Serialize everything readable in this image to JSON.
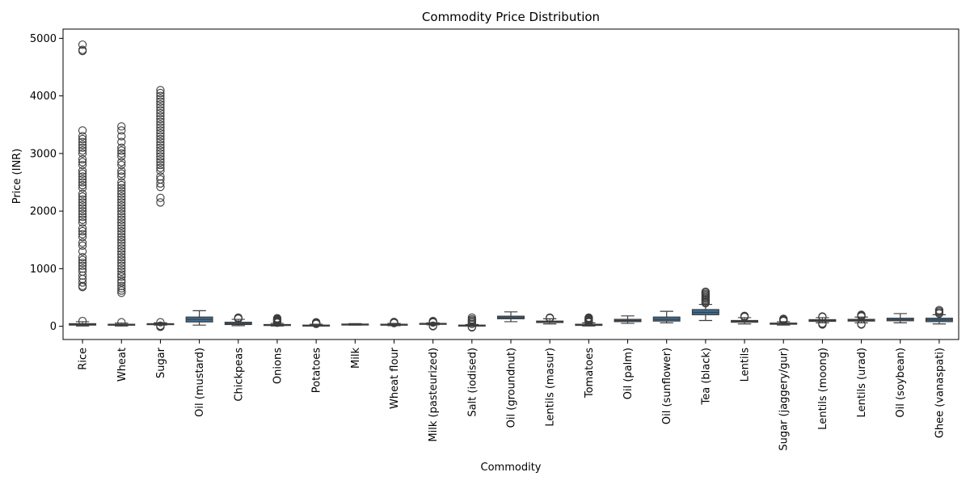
{
  "chart_data": {
    "type": "box",
    "title": "Commodity Price Distribution",
    "xlabel": "Commodity",
    "ylabel": "Price (INR)",
    "ylim": [
      -230,
      5160
    ],
    "yticks": [
      0,
      1000,
      2000,
      3000,
      4000,
      5000
    ],
    "box_color": "#3a6f9a",
    "line_color": "#3d3d3d",
    "grid": false,
    "series": [
      {
        "category": "Rice",
        "whisker_low": 5,
        "q1": 20,
        "median": 30,
        "q3": 45,
        "whisker_high": 80,
        "outliers": [
          90,
          700,
          680,
          760,
          820,
          880,
          950,
          1000,
          1050,
          1100,
          1150,
          1200,
          1300,
          1400,
          1450,
          1550,
          1600,
          1650,
          1700,
          1800,
          1850,
          1900,
          1950,
          2000,
          2050,
          2100,
          2150,
          2200,
          2250,
          2300,
          2400,
          2450,
          2500,
          2550,
          2600,
          2650,
          2700,
          2800,
          2850,
          2900,
          3000,
          3050,
          3100,
          3150,
          3200,
          3250,
          3300,
          3400,
          4780,
          4800,
          4890
        ]
      },
      {
        "category": "Wheat",
        "whisker_low": 5,
        "q1": 18,
        "median": 25,
        "q3": 35,
        "whisker_high": 55,
        "outliers": [
          70,
          580,
          620,
          660,
          700,
          760,
          800,
          860,
          900,
          950,
          1000,
          1050,
          1100,
          1150,
          1200,
          1250,
          1300,
          1350,
          1400,
          1450,
          1500,
          1550,
          1600,
          1650,
          1700,
          1750,
          1800,
          1850,
          1900,
          1950,
          2000,
          2050,
          2100,
          2150,
          2200,
          2250,
          2300,
          2350,
          2400,
          2450,
          2500,
          2600,
          2650,
          2700,
          2800,
          2850,
          2950,
          3000,
          3050,
          3100,
          3200,
          3300,
          3400,
          3470
        ]
      },
      {
        "category": "Sugar",
        "whisker_low": 20,
        "q1": 30,
        "median": 38,
        "q3": 45,
        "whisker_high": 60,
        "outliers": [
          -10,
          0,
          10,
          70,
          2150,
          2230,
          2420,
          2480,
          2550,
          2600,
          2700,
          2750,
          2800,
          2850,
          2900,
          2950,
          3000,
          3050,
          3100,
          3150,
          3200,
          3250,
          3300,
          3350,
          3400,
          3450,
          3500,
          3550,
          3600,
          3650,
          3700,
          3750,
          3800,
          3850,
          3900,
          3950,
          4000,
          4050,
          4100
        ]
      },
      {
        "category": "Oil (mustard)",
        "whisker_low": 20,
        "q1": 75,
        "median": 120,
        "q3": 160,
        "whisker_high": 270,
        "outliers": []
      },
      {
        "category": "Chickpeas",
        "whisker_low": 10,
        "q1": 30,
        "median": 45,
        "q3": 70,
        "whisker_high": 120,
        "outliers": [
          130,
          140,
          150
        ]
      },
      {
        "category": "Onions",
        "whisker_low": 5,
        "q1": 15,
        "median": 22,
        "q3": 30,
        "whisker_high": 50,
        "outliers": [
          60,
          70,
          80,
          90,
          100,
          110,
          120,
          130,
          140
        ]
      },
      {
        "category": "Potatoes",
        "whisker_low": 3,
        "q1": 10,
        "median": 15,
        "q3": 20,
        "whisker_high": 35,
        "outliers": [
          40,
          45,
          50,
          55,
          60,
          65,
          70
        ]
      },
      {
        "category": "Milk",
        "whisker_low": 20,
        "q1": 28,
        "median": 32,
        "q3": 38,
        "whisker_high": 45,
        "outliers": []
      },
      {
        "category": "Wheat flour",
        "whisker_low": 10,
        "q1": 20,
        "median": 28,
        "q3": 35,
        "whisker_high": 50,
        "outliers": [
          55,
          60,
          65,
          70,
          75
        ]
      },
      {
        "category": "Milk (pasteurized)",
        "whisker_low": 25,
        "q1": 35,
        "median": 42,
        "q3": 50,
        "whisker_high": 60,
        "outliers": [
          0,
          10,
          65,
          70,
          75,
          80,
          90
        ]
      },
      {
        "category": "Salt (iodised)",
        "whisker_low": 5,
        "q1": 10,
        "median": 15,
        "q3": 20,
        "whisker_high": 30,
        "outliers": [
          -20,
          -10,
          40,
          60,
          80,
          100,
          120,
          150
        ]
      },
      {
        "category": "Oil (groundnut)",
        "whisker_low": 80,
        "q1": 130,
        "median": 150,
        "q3": 175,
        "whisker_high": 250,
        "outliers": []
      },
      {
        "category": "Lentils (masur)",
        "whisker_low": 40,
        "q1": 65,
        "median": 78,
        "q3": 90,
        "whisker_high": 130,
        "outliers": [
          140,
          145,
          150
        ]
      },
      {
        "category": "Tomatoes",
        "whisker_low": 5,
        "q1": 15,
        "median": 25,
        "q3": 35,
        "whisker_high": 60,
        "outliers": [
          70,
          80,
          90,
          100,
          110,
          120,
          130,
          140,
          150
        ]
      },
      {
        "category": "Oil (palm)",
        "whisker_low": 50,
        "q1": 80,
        "median": 100,
        "q3": 120,
        "whisker_high": 180,
        "outliers": []
      },
      {
        "category": "Oil (sunflower)",
        "whisker_low": 60,
        "q1": 90,
        "median": 120,
        "q3": 160,
        "whisker_high": 260,
        "outliers": []
      },
      {
        "category": "Tea (black)",
        "whisker_low": 100,
        "q1": 200,
        "median": 240,
        "q3": 290,
        "whisker_high": 380,
        "outliers": [
          400,
          420,
          440,
          460,
          480,
          500,
          520,
          540,
          560,
          580,
          600
        ]
      },
      {
        "category": "Lentils",
        "whisker_low": 40,
        "q1": 70,
        "median": 85,
        "q3": 100,
        "whisker_high": 150,
        "outliers": [
          160,
          170,
          180
        ]
      },
      {
        "category": "Sugar (jaggery/gur)",
        "whisker_low": 20,
        "q1": 35,
        "median": 45,
        "q3": 55,
        "whisker_high": 80,
        "outliers": [
          90,
          100,
          110,
          120,
          130
        ]
      },
      {
        "category": "Lentils (moong)",
        "whisker_low": 60,
        "q1": 85,
        "median": 100,
        "q3": 115,
        "whisker_high": 150,
        "outliers": [
          30,
          40,
          50,
          160,
          170
        ]
      },
      {
        "category": "Lentils (urad)",
        "whisker_low": 60,
        "q1": 90,
        "median": 105,
        "q3": 120,
        "whisker_high": 160,
        "outliers": [
          30,
          40,
          170,
          180,
          190,
          200
        ]
      },
      {
        "category": "Oil (soybean)",
        "whisker_low": 60,
        "q1": 95,
        "median": 115,
        "q3": 140,
        "whisker_high": 220,
        "outliers": []
      },
      {
        "category": "Ghee (vanaspati)",
        "whisker_low": 40,
        "q1": 80,
        "median": 110,
        "q3": 140,
        "whisker_high": 200,
        "outliers": [
          220,
          240,
          260,
          280
        ]
      }
    ]
  }
}
